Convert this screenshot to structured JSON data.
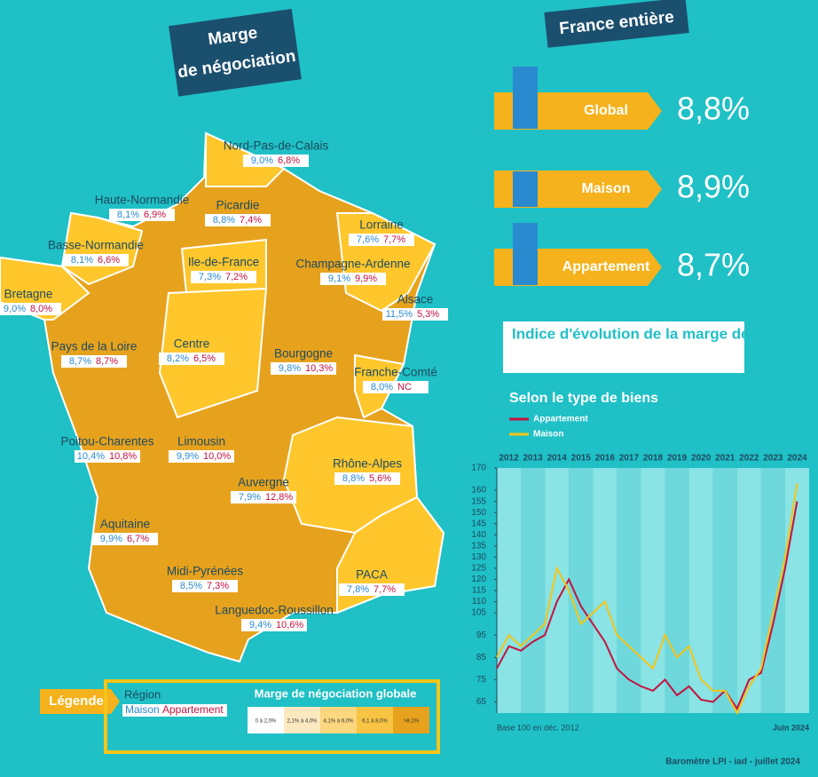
{
  "header": {
    "title_line1": "Marge",
    "title_line2": "de négociation"
  },
  "france": {
    "title": "France entière",
    "items": [
      {
        "label": "Global",
        "value": "8,8%"
      },
      {
        "label": "Maison",
        "value": "8,9%"
      },
      {
        "label": "Appartement",
        "value": "8,7%"
      }
    ]
  },
  "regions": [
    {
      "name": "Nord-Pas-de-Calais",
      "maison": "9,0%",
      "appartement": "6,8%"
    },
    {
      "name": "Haute-Normandie",
      "maison": "8,1%",
      "appartement": "6,9%"
    },
    {
      "name": "Picardie",
      "maison": "8,8%",
      "appartement": "7,4%"
    },
    {
      "name": "Lorraine",
      "maison": "7,6%",
      "appartement": "7,7%"
    },
    {
      "name": "Basse-Normandie",
      "maison": "8,1%",
      "appartement": "6,6%"
    },
    {
      "name": "Ile-de-France",
      "maison": "7,3%",
      "appartement": "7,2%"
    },
    {
      "name": "Champagne-Ardenne",
      "maison": "9,1%",
      "appartement": "9,9%"
    },
    {
      "name": "Bretagne",
      "maison": "9,0%",
      "appartement": "8,0%"
    },
    {
      "name": "Alsace",
      "maison": "11,5%",
      "appartement": "5,3%"
    },
    {
      "name": "Pays de la Loire",
      "maison": "8,7%",
      "appartement": "8,7%"
    },
    {
      "name": "Centre",
      "maison": "8,2%",
      "appartement": "6,5%"
    },
    {
      "name": "Bourgogne",
      "maison": "9,8%",
      "appartement": "10,3%"
    },
    {
      "name": "Franche-Comté",
      "maison": "8,0%",
      "appartement": "NC"
    },
    {
      "name": "Poitou-Charentes",
      "maison": "10,4%",
      "appartement": "10,8%"
    },
    {
      "name": "Limousin",
      "maison": "9,9%",
      "appartement": "10,0%"
    },
    {
      "name": "Rhône-Alpes",
      "maison": "8,8%",
      "appartement": "5,6%"
    },
    {
      "name": "Auvergne",
      "maison": "7,9%",
      "appartement": "12,8%"
    },
    {
      "name": "Aquitaine",
      "maison": "9,9%",
      "appartement": "6,7%"
    },
    {
      "name": "Midi-Pyrénées",
      "maison": "8,5%",
      "appartement": "7,3%"
    },
    {
      "name": "PACA",
      "maison": "7,8%",
      "appartement": "7,7%"
    },
    {
      "name": "Languedoc-Roussillon",
      "maison": "9,4%",
      "appartement": "10,6%"
    }
  ],
  "legend": {
    "title": "Légende",
    "region": "Région",
    "maison": "Maison",
    "appartement": "Appartement",
    "scale_title": "Marge de négociation globale",
    "buckets": [
      "0 à 2,0%",
      "2,1% à 4,0%",
      "4,1% à 6,0%",
      "6,1 à 8,0%",
      ">8,1%"
    ]
  },
  "chart_data": {
    "type": "line",
    "title": "Indice d'évolution de la marge de négociation",
    "subtitle": "Selon le type de biens",
    "x": [
      2012,
      2012.5,
      2013,
      2013.5,
      2014,
      2014.5,
      2015,
      2015.5,
      2016,
      2016.5,
      2017,
      2017.5,
      2018,
      2018.5,
      2019,
      2019.5,
      2020,
      2020.5,
      2021,
      2021.5,
      2022,
      2022.5,
      2023,
      2023.5,
      2024,
      2024.5
    ],
    "xlim": [
      2012,
      2025
    ],
    "xticks": [
      2012,
      2013,
      2014,
      2015,
      2016,
      2017,
      2018,
      2019,
      2020,
      2021,
      2022,
      2023,
      2024
    ],
    "ylim": [
      60,
      170
    ],
    "yticks": [
      170,
      160,
      155,
      150,
      145,
      140,
      135,
      130,
      125,
      120,
      115,
      110,
      105,
      95,
      85,
      75,
      65
    ],
    "series": [
      {
        "name": "Appartement",
        "color": "#c4123f",
        "values": [
          80,
          90,
          88,
          92,
          95,
          110,
          120,
          108,
          100,
          92,
          80,
          75,
          72,
          70,
          75,
          68,
          72,
          66,
          65,
          70,
          62,
          75,
          78,
          100,
          125,
          155
        ]
      },
      {
        "name": "Maison",
        "color": "#f5c518",
        "values": [
          85,
          95,
          90,
          95,
          100,
          125,
          115,
          100,
          105,
          110,
          95,
          90,
          85,
          80,
          95,
          85,
          90,
          75,
          70,
          70,
          60,
          72,
          80,
          105,
          130,
          163
        ]
      }
    ],
    "annotations": [
      "Base 100 en déc. 2012",
      "Juin 2024"
    ]
  },
  "footer": "Baromètre LPI - iad - juillet 2024"
}
